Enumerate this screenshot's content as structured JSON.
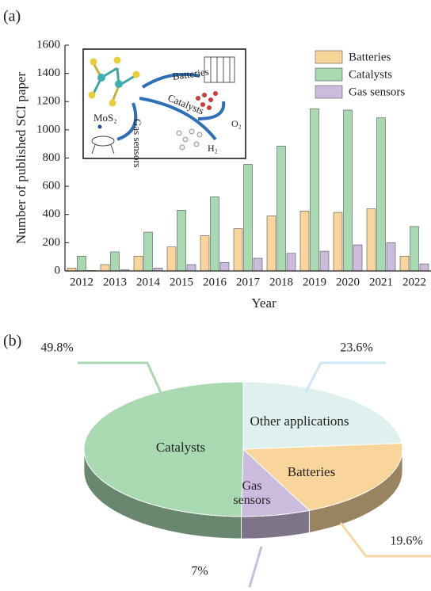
{
  "chart_data": [
    {
      "type": "bar",
      "panel": "(a)",
      "xlabel": "Year",
      "ylabel": "Number of published SCI paper",
      "categories": [
        "2012",
        "2013",
        "2014",
        "2015",
        "2016",
        "2017",
        "2018",
        "2019",
        "2020",
        "2021",
        "2022"
      ],
      "series": [
        {
          "name": "Batteries",
          "color": "#f9d49b",
          "values": [
            20,
            45,
            105,
            170,
            250,
            300,
            390,
            425,
            415,
            440,
            105
          ]
        },
        {
          "name": "Catalysts",
          "color": "#a8d9b1",
          "values": [
            105,
            135,
            275,
            430,
            525,
            755,
            885,
            1150,
            1140,
            1085,
            315
          ]
        },
        {
          "name": "Gas sensors",
          "color": "#cbbbdc",
          "values": [
            3,
            8,
            20,
            45,
            60,
            90,
            125,
            140,
            185,
            200,
            50
          ]
        }
      ],
      "ylim": [
        0,
        1600
      ],
      "yticks": [
        0,
        200,
        400,
        600,
        800,
        1000,
        1200,
        1400,
        1600
      ],
      "legend": "upper right",
      "inset": {
        "labels": [
          "Batteries",
          "MoS₂",
          "Gas sensors",
          "Catalysts",
          "O₂",
          "H₂"
        ]
      }
    },
    {
      "type": "pie",
      "panel": "(b)",
      "categories": [
        "Other applications",
        "Batteries",
        "Gas sensors",
        "Catalysts"
      ],
      "values": [
        23.6,
        19.6,
        7,
        49.8
      ],
      "value_labels": [
        "23.6%",
        "19.6%",
        "7%",
        "49.8%"
      ],
      "colors": [
        "#dff1ef",
        "#f9d49b",
        "#cbbbdc",
        "#a8d9b1"
      ]
    }
  ]
}
